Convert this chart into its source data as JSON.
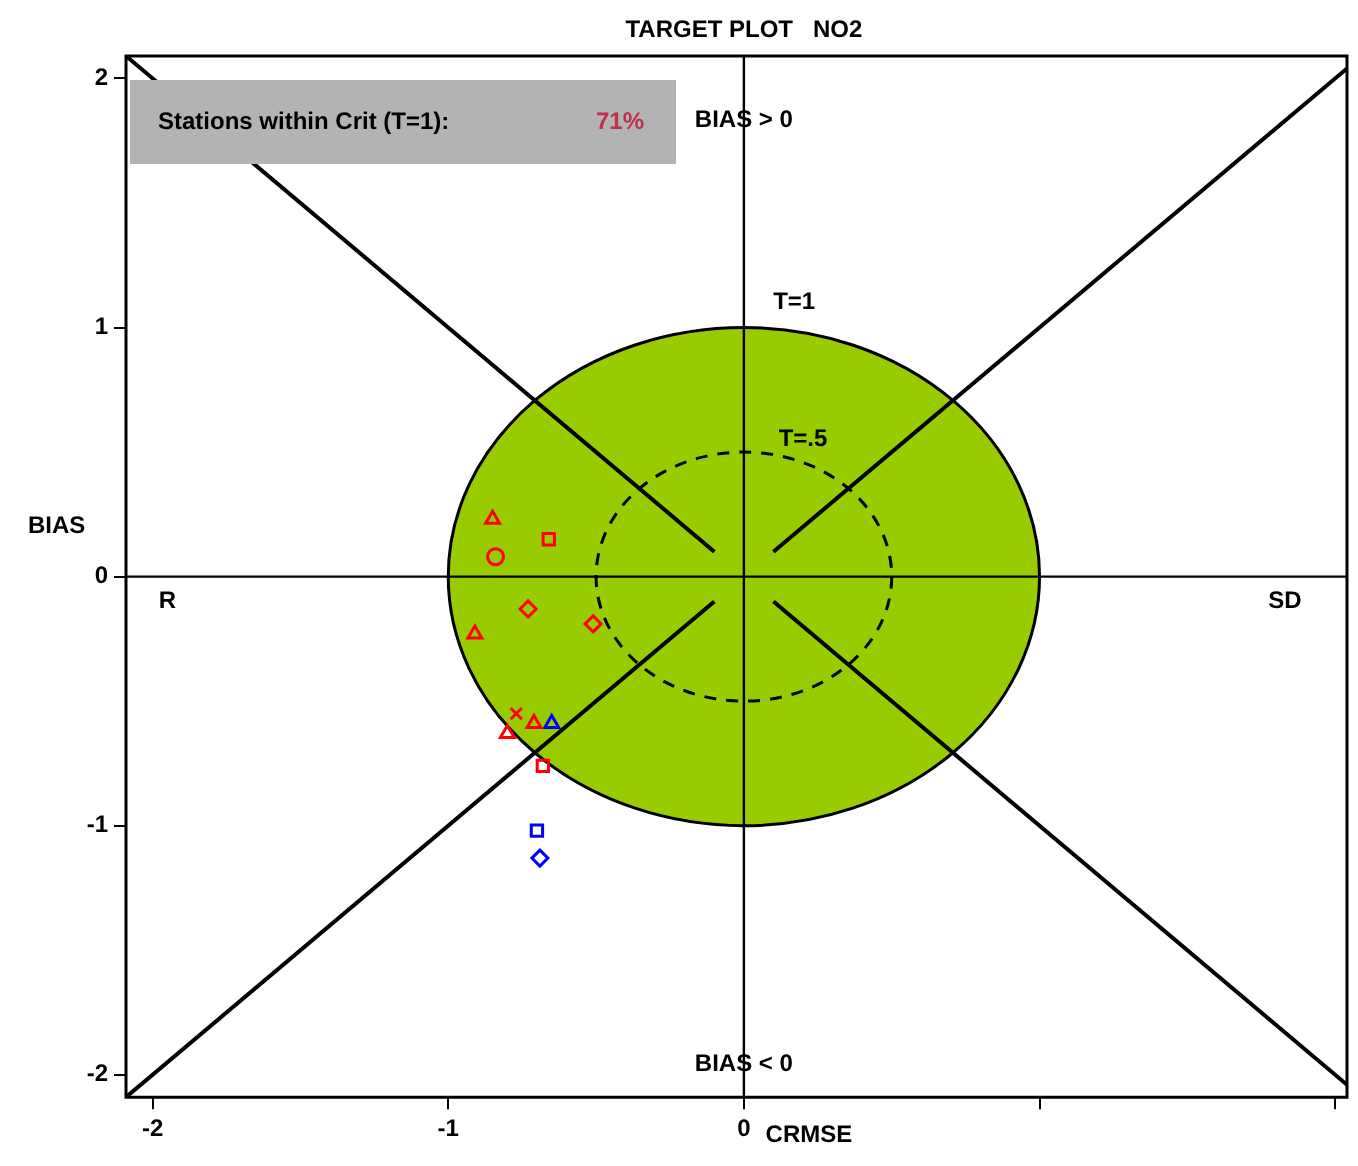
{
  "chart_data": {
    "type": "scatter",
    "title": "TARGET PLOT   NO2",
    "xlabel": "CRMSE",
    "ylabel": "BIAS",
    "xlim": [
      -2.09,
      2.04
    ],
    "ylim": [
      -2.09,
      2.09
    ],
    "xticks": [
      -2,
      -1,
      0,
      {
        "value": 1,
        "label": null
      },
      {
        "value": 2,
        "label": null
      }
    ],
    "yticks": [
      -2,
      -1,
      0,
      1,
      2
    ],
    "grid": false,
    "legend": false,
    "annotations": [
      "Stations within Crit (T=1):",
      "71%",
      "T=1",
      "T=.5",
      "BIAS > 0",
      "BIAS < 0",
      "R",
      "SD"
    ],
    "series": [
      {
        "type": "line",
        "color": "#000000",
        "marker": "none",
        "x": [
          -2.09,
          2.04
        ],
        "values": [
          0,
          0
        ]
      },
      {
        "type": "line",
        "color": "#000000",
        "marker": "none",
        "x": [
          0,
          0
        ],
        "values": [
          -2.09,
          2.09
        ]
      },
      {
        "type": "line",
        "color": "#000000",
        "marker": "none",
        "x": [
          0.1,
          2.04
        ],
        "values": [
          0.1,
          2.04
        ]
      },
      {
        "type": "line",
        "color": "#000000",
        "marker": "none",
        "x": [
          -2.09,
          -0.1
        ],
        "values": [
          2.09,
          0.1
        ]
      },
      {
        "type": "line",
        "color": "#000000",
        "marker": "none",
        "x": [
          -2.09,
          -0.1
        ],
        "values": [
          -2.09,
          -0.1
        ]
      },
      {
        "type": "line",
        "color": "#000000",
        "marker": "none",
        "x": [
          0.1,
          2.04
        ],
        "values": [
          -0.1,
          -2.04
        ]
      },
      {
        "color": "#ff0000",
        "marker": "triangle",
        "x": [
          -0.85
        ],
        "values": [
          0.23
        ]
      },
      {
        "color": "#ff0000",
        "marker": "square",
        "x": [
          -0.66
        ],
        "values": [
          0.15
        ]
      },
      {
        "color": "#ff0000",
        "marker": "circle",
        "x": [
          -0.84
        ],
        "values": [
          0.08
        ]
      },
      {
        "color": "#ff0000",
        "marker": "diamond",
        "x": [
          -0.73
        ],
        "values": [
          -0.13
        ]
      },
      {
        "color": "#ff0000",
        "marker": "diamond",
        "x": [
          -0.51
        ],
        "values": [
          -0.19
        ]
      },
      {
        "color": "#ff0000",
        "marker": "triangle",
        "x": [
          -0.91
        ],
        "values": [
          -0.23
        ]
      },
      {
        "color": "#ff0000",
        "marker": "cross",
        "x": [
          -0.77
        ],
        "values": [
          -0.55
        ]
      },
      {
        "color": "#ff0000",
        "marker": "triangle",
        "x": [
          -0.71
        ],
        "values": [
          -0.59
        ]
      },
      {
        "color": "#ff0000",
        "marker": "triangle",
        "x": [
          -0.8
        ],
        "values": [
          -0.63
        ]
      },
      {
        "color": "#0000ff",
        "marker": "triangle",
        "x": [
          -0.65
        ],
        "values": [
          -0.59
        ]
      },
      {
        "color": "#ff0000",
        "marker": "square",
        "x": [
          -0.68
        ],
        "values": [
          -0.76
        ]
      },
      {
        "color": "#0000ff",
        "marker": "square",
        "x": [
          -0.7
        ],
        "values": [
          -1.02
        ]
      },
      {
        "color": "#0000ff",
        "marker": "diamond",
        "x": [
          -0.69
        ],
        "values": [
          -1.13
        ]
      }
    ]
  }
}
